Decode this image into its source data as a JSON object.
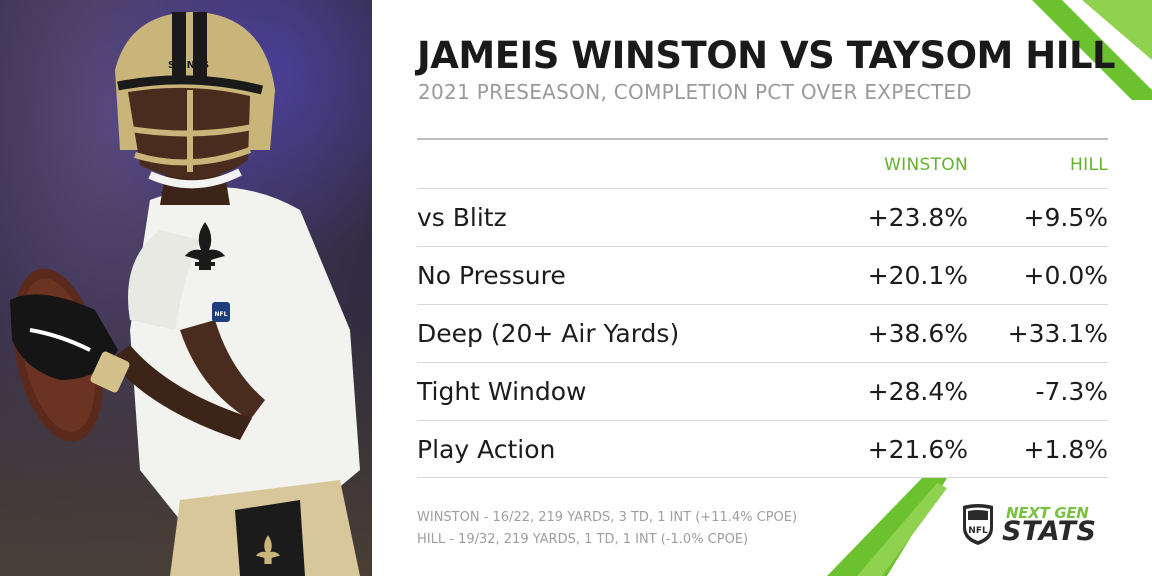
{
  "header": {
    "title": "JAMEIS WINSTON VS TAYSOM HILL",
    "subtitle": "2021 PRESEASON, COMPLETION PCT OVER EXPECTED"
  },
  "table": {
    "columns": [
      "WINSTON",
      "HILL"
    ],
    "rows": [
      {
        "label": "vs Blitz",
        "winston": "+23.8%",
        "hill": "+9.5%"
      },
      {
        "label": "No Pressure",
        "winston": "+20.1%",
        "hill": "+0.0%"
      },
      {
        "label": "Deep (20+ Air Yards)",
        "winston": "+38.6%",
        "hill": "+33.1%"
      },
      {
        "label": "Tight Window",
        "winston": "+28.4%",
        "hill": "-7.3%"
      },
      {
        "label": "Play Action",
        "winston": "+21.6%",
        "hill": "+1.8%"
      }
    ]
  },
  "footnotes": [
    "WINSTON - 16/22, 219 YARDS, 3 TD, 1 INT (+11.4% CPOE)",
    "HILL - 19/32, 219 YARDS, 1 TD, 1 INT (-1.0% CPOE)"
  ],
  "logo": {
    "shield_text": "NFL",
    "line1": "NEXT GEN",
    "line2": "STATS"
  },
  "photo": {
    "helmet_text": "SAINTS",
    "sleeve_patch": "NFL",
    "icon": "fleur-de-lis-icon"
  },
  "colors": {
    "accent_green": "#64b22e",
    "title": "#1a1a1a",
    "subtitle": "#9a9a9a",
    "saints_gold": "#c9b47a"
  }
}
